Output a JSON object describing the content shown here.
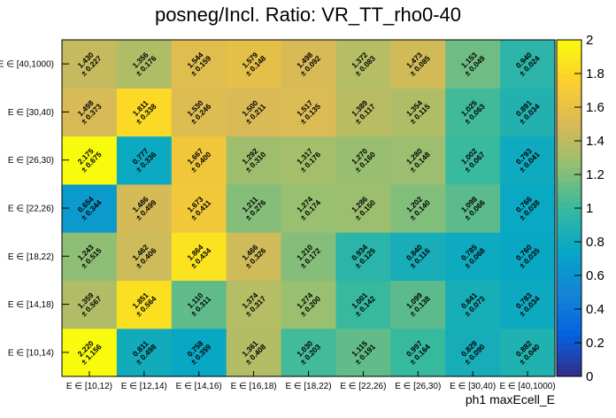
{
  "chart_data": {
    "type": "heatmap",
    "title": "posneg/Incl. Ratio: VR_TT_rho0-40",
    "xlabel": "ph1 maxEcell_E",
    "ylabel": "",
    "x_categories": [
      "E ∈ [10,12)",
      "E ∈ [12,14)",
      "E ∈ [14,16)",
      "E ∈ [16,18)",
      "E ∈ [18,22)",
      "E ∈ [22,26)",
      "E ∈ [26,30)",
      "E ∈ [30,40)",
      "E ∈ [40,1000)"
    ],
    "y_categories": [
      "E ∈ [10,14)",
      "E ∈ [14,18)",
      "E ∈ [18,22)",
      "E ∈ [22,26)",
      "E ∈ [26,30)",
      "E ∈ [30,40)",
      "E ∈ [40,1000)"
    ],
    "values": [
      [
        2.22,
        0.811,
        0.758,
        1.361,
        1.03,
        1.115,
        0.997,
        0.829,
        0.882
      ],
      [
        1.359,
        1.851,
        1.11,
        1.374,
        1.274,
        1.001,
        1.099,
        0.841,
        0.783
      ],
      [
        1.243,
        1.462,
        1.864,
        1.466,
        1.21,
        0.934,
        0.84,
        0.785,
        0.76
      ],
      [
        0.654,
        1.486,
        1.673,
        1.211,
        1.274,
        1.286,
        1.202,
        1.098,
        0.766
      ],
      [
        2.175,
        0.777,
        1.667,
        1.292,
        1.317,
        1.27,
        1.28,
        1.002,
        0.793
      ],
      [
        1.498,
        1.811,
        1.53,
        1.5,
        1.517,
        1.389,
        1.354,
        1.025,
        0.891
      ],
      [
        1.43,
        1.356,
        1.544,
        1.579,
        1.498,
        1.372,
        1.473,
        1.153,
        0.94
      ]
    ],
    "errors": [
      [
        1.156,
        0.498,
        0.359,
        0.408,
        0.203,
        0.191,
        0.164,
        0.09,
        0.04
      ],
      [
        0.567,
        0.564,
        0.311,
        0.317,
        0.2,
        0.142,
        0.138,
        0.073,
        0.034
      ],
      [
        0.515,
        0.406,
        0.434,
        0.326,
        0.172,
        0.125,
        0.116,
        0.068,
        0.035
      ],
      [
        0.344,
        0.499,
        0.411,
        0.276,
        0.174,
        0.15,
        0.14,
        0.066,
        0.038
      ],
      [
        0.675,
        0.336,
        0.4,
        0.31,
        0.176,
        0.16,
        0.148,
        0.067,
        0.041
      ],
      [
        0.373,
        0.338,
        0.246,
        0.211,
        0.135,
        0.117,
        0.115,
        0.063,
        0.034
      ],
      [
        0.227,
        0.176,
        0.159,
        0.148,
        0.092,
        0.083,
        0.085,
        0.049,
        0.024
      ]
    ],
    "zlim": [
      0,
      2
    ],
    "z_ticks": [
      0,
      0.2,
      0.4,
      0.6,
      0.8,
      1,
      1.2,
      1.4,
      1.6,
      1.8,
      2
    ],
    "z_tick_labels": [
      "0",
      "0.2",
      "0.4",
      "0.6",
      "0.8",
      "1",
      "1.2",
      "1.4",
      "1.6",
      "1.8",
      "2"
    ],
    "colormap": [
      "#352a87",
      "#0363e1",
      "#1485d4",
      "#06a7c6",
      "#38b99e",
      "#92bf73",
      "#d9ba56",
      "#fcce2e",
      "#f9fb0e"
    ]
  }
}
